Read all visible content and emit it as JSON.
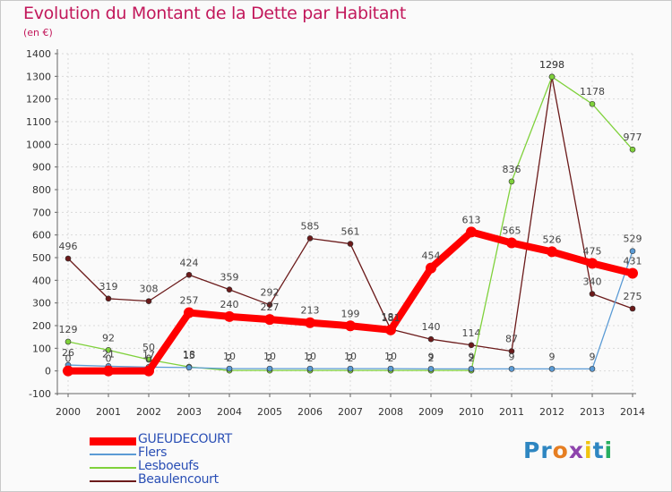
{
  "header": {
    "title": "Evolution du Montant de la Dette par Habitant",
    "unit": "(en €)"
  },
  "brand": {
    "letters": [
      "P",
      "r",
      "o",
      "x",
      "i",
      "t",
      "i"
    ],
    "colors": [
      "#2e86c1",
      "#2e86c1",
      "#e67e22",
      "#8e44ad",
      "#f1c40f",
      "#2e86c1",
      "#27ae60"
    ]
  },
  "chart_data": {
    "type": "line",
    "title": "Evolution du Montant de la Dette par Habitant",
    "ylabel": "(en €)",
    "xlabel": "",
    "ylim": [
      -100,
      1400
    ],
    "yticks": [
      -100,
      0,
      100,
      200,
      300,
      400,
      500,
      600,
      700,
      800,
      900,
      1000,
      1100,
      1200,
      1300,
      1400
    ],
    "categories": [
      "2000",
      "2001",
      "2002",
      "2003",
      "2004",
      "2005",
      "2006",
      "2007",
      "2008",
      "2009",
      "2010",
      "2011",
      "2012",
      "2013",
      "2014"
    ],
    "grid": true,
    "legend_position": "bottom-left",
    "series": [
      {
        "name": "Beaulencourt",
        "color": "#6b1a1a",
        "width": 1.3,
        "marker": 3,
        "values": [
          496,
          319,
          308,
          424,
          359,
          292,
          585,
          561,
          184,
          140,
          114,
          87,
          1298,
          340,
          275
        ],
        "labels": [
          "496",
          "319",
          "308",
          "424",
          "359",
          "292",
          "585",
          "561",
          "184",
          "140",
          "114",
          "87",
          "1298",
          "340",
          "275"
        ]
      },
      {
        "name": "Lesboeufs",
        "color": "#7fd13b",
        "width": 1.3,
        "marker": 3,
        "values": [
          129,
          92,
          50,
          18,
          2,
          2,
          2,
          2,
          2,
          2,
          2,
          836,
          1298,
          1178,
          977
        ],
        "labels": [
          "129",
          "92",
          "50",
          "18",
          "2",
          "2",
          "2",
          "2",
          "2",
          "2",
          "2",
          "836",
          "1298",
          "1178",
          "977"
        ]
      },
      {
        "name": "Flers",
        "color": "#5b9bd5",
        "width": 1.3,
        "marker": 3,
        "values": [
          26,
          21,
          17,
          15,
          10,
          10,
          10,
          10,
          10,
          9,
          9,
          9,
          9,
          9,
          529
        ],
        "labels": [
          "26",
          "21",
          "17",
          "15",
          "10",
          "10",
          "10",
          "10",
          "10",
          "9",
          "9",
          "9",
          "9",
          "9",
          "529"
        ]
      },
      {
        "name": "GUEUDECOURT",
        "color": "#ff0000",
        "width": 8,
        "marker": 6,
        "values": [
          0,
          0,
          0,
          257,
          240,
          227,
          213,
          199,
          181,
          454,
          613,
          565,
          526,
          475,
          431
        ],
        "labels": [
          "0",
          "0",
          "0",
          "257",
          "240",
          "227",
          "213",
          "199",
          "181",
          "454",
          "613",
          "565",
          "526",
          "475",
          "431"
        ]
      }
    ],
    "legend_order": [
      "GUEUDECOURT",
      "Flers",
      "Lesboeufs",
      "Beaulencourt"
    ]
  }
}
